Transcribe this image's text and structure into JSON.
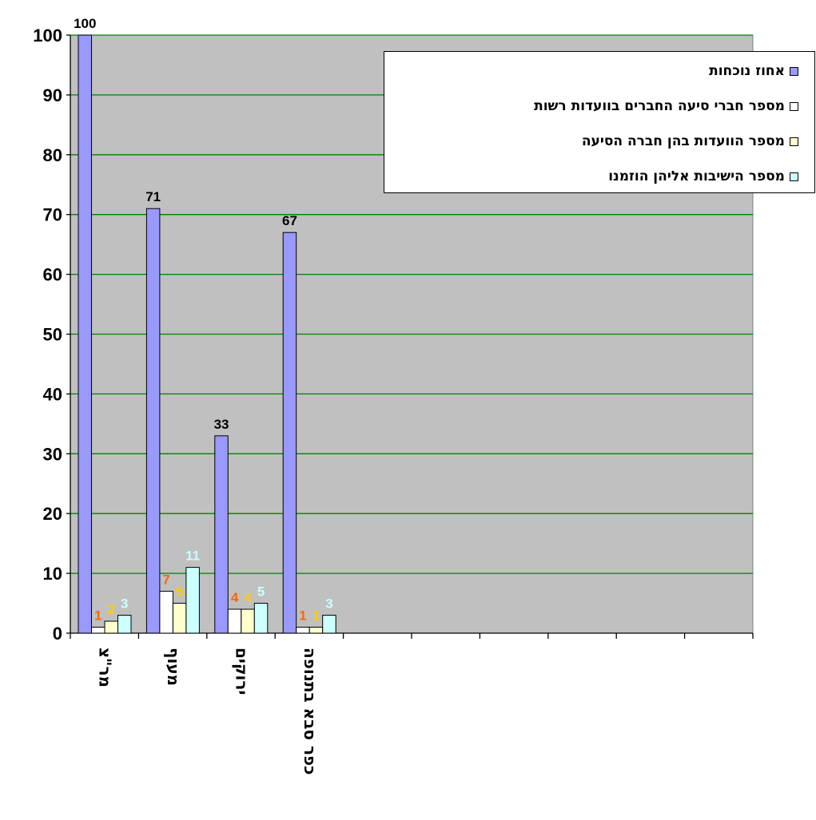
{
  "chart_data": {
    "type": "bar",
    "categories": [
      "מר\"צ",
      "מעוף",
      "ירוקים",
      "כפר סבא בתנופה",
      "",
      "",
      "",
      "",
      "",
      ""
    ],
    "series": [
      {
        "name": "אחוז נוכחות",
        "color": "#9999FF",
        "label_color": "#000000",
        "values": [
          100,
          71,
          33,
          67,
          null,
          null,
          null,
          null,
          null,
          null
        ]
      },
      {
        "name": "מספר חברי סיעה החברים בוועדות רשות",
        "color": "#FFFFFF",
        "label_color": "#FF6600",
        "values": [
          1,
          7,
          4,
          1,
          null,
          null,
          null,
          null,
          null,
          null
        ]
      },
      {
        "name": "מספר הוועדות בהן חברה הסיעה",
        "color": "#FFFFCC",
        "label_color": "#FFCC00",
        "values": [
          2,
          5,
          4,
          1,
          null,
          null,
          null,
          null,
          null,
          null
        ]
      },
      {
        "name": "מספר הישיבות אליהן הוזמנו",
        "color": "#CCFFFF",
        "label_color": "#CCFFFF",
        "values": [
          3,
          11,
          5,
          3,
          null,
          null,
          null,
          null,
          null,
          null
        ]
      }
    ],
    "y_ticks": [
      "0",
      "10",
      "20",
      "30",
      "40",
      "50",
      "60",
      "70",
      "80",
      "90",
      "100"
    ],
    "ylim": [
      0,
      100
    ],
    "grid": true,
    "grid_color": "#008000",
    "plot_background": "#C0C0C0",
    "legend_placement": "top-right",
    "title": "",
    "xlabel": "",
    "ylabel": ""
  }
}
